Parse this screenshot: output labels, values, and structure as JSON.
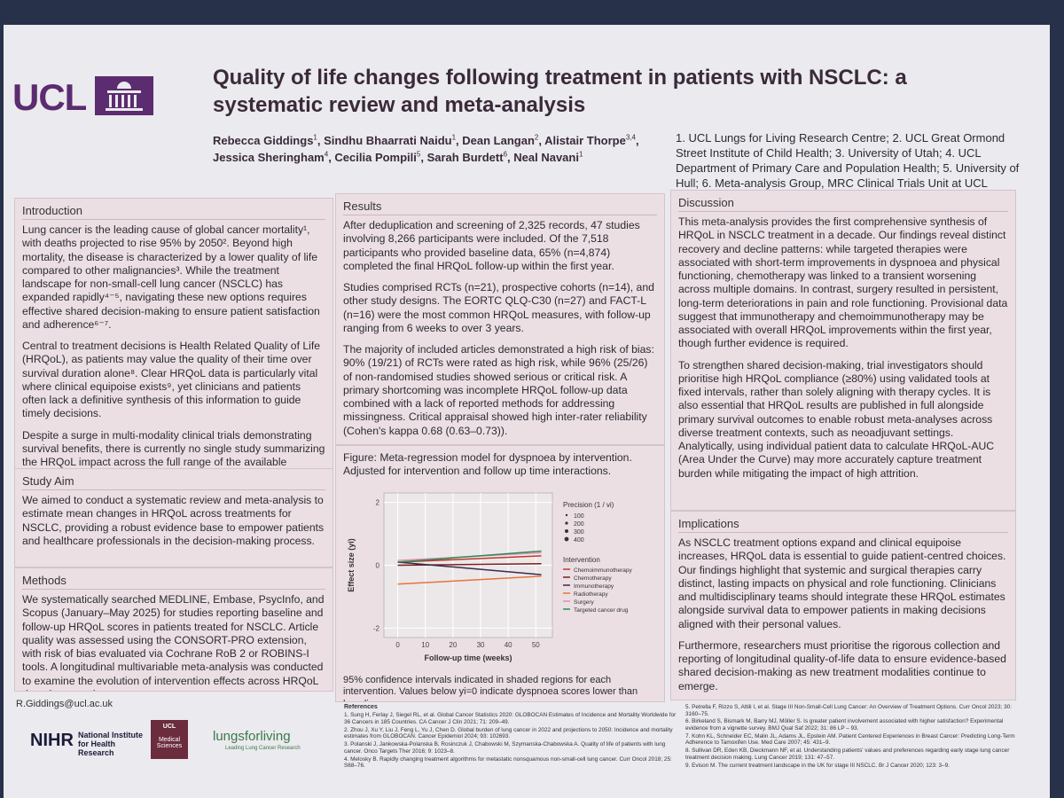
{
  "header": {
    "logo": "UCL",
    "title": "Quality of life changes following treatment in patients with NSCLC: a systematic review and meta-analysis",
    "authors": [
      {
        "name": "Rebecca Giddings",
        "sup": "1"
      },
      {
        "name": "Sindhu Bhaarrati Naidu",
        "sup": "1"
      },
      {
        "name": "Dean Langan",
        "sup": "2"
      },
      {
        "name": "Alistair Thorpe",
        "sup": "3,4"
      },
      {
        "name": "Jessica Sheringham",
        "sup": "4"
      },
      {
        "name": "Cecilia Pompili",
        "sup": "5"
      },
      {
        "name": "Sarah Burdett",
        "sup": "6"
      },
      {
        "name": "Neal Navani",
        "sup": "1"
      }
    ],
    "affiliations": "1. UCL Lungs for Living Research Centre; 2. UCL Great Ormond Street Institute of Child Health; 3. University of Utah; 4. UCL Department of Primary Care and Population Health; 5. University of Hull; 6. Meta-analysis Group, MRC Clinical Trials Unit at UCL"
  },
  "sections": [
    {
      "heading": "Introduction",
      "paragraphs": [
        "Lung cancer is the leading cause of global cancer mortality¹, with deaths projected to rise 95% by 2050². Beyond high mortality, the disease is characterized by a lower quality of life compared to other malignancies³. While the treatment landscape for non-small-cell lung cancer (NSCLC) has expanded rapidly⁴⁻⁵, navigating these new options requires effective shared decision-making to ensure patient satisfaction and adherence⁶⁻⁷.",
        "Central to treatment decisions is Health Related Quality of Life (HRQoL), as patients may value the quality of their time over survival duration alone⁸. Clear HRQoL data is particularly vital where clinical equipoise exists⁹, yet clinicians and patients often lack a definitive synthesis of this information to guide timely decisions.",
        "Despite a surge in multi-modality clinical trials demonstrating survival benefits, there is currently no single study summarizing the HRQoL impact across the full range of the available therapies."
      ]
    },
    {
      "heading": "Study Aim",
      "paragraphs": [
        "We aimed to conduct a systematic review and meta-analysis to estimate mean changes in HRQoL across treatments for NSCLC, providing a robust evidence base to empower patients and healthcare professionals in the decision-making process."
      ]
    },
    {
      "heading": "Methods",
      "paragraphs": [
        "We systematically searched MEDLINE, Embase, PsycInfo, and Scopus (January–May 2025) for studies reporting baseline and follow-up HRQoL scores in patients treated for NSCLC. Article quality was assessed using the CONSORT-PRO extension, with risk of bias evaluated via Cochrane RoB 2 or ROBINS-I tools. A longitudinal multivariable meta-analysis was conducted to examine the evolution of intervention effects across HRQoL domains over time."
      ]
    },
    {
      "heading": "Results",
      "paragraphs": [
        "After deduplication and screening of 2,325 records, 47 studies involving 8,266 participants were included. Of the 7,518 participants who provided baseline data, 65% (n=4,874) completed the final HRQoL follow-up within the first year.",
        "Studies comprised RCTs (n=21), prospective cohorts (n=14), and other study designs. The EORTC QLQ-C30 (n=27) and FACT-L (n=16) were the most common HRQoL measures, with follow-up ranging from 6 weeks to over 3 years.",
        "The majority of included articles demonstrated a high risk of bias: 90% (19/21) of RCTs were rated as high risk, while 96% (25/26) of non-randomised studies showed serious or critical risk. A primary shortcoming was incomplete HRQoL follow-up data combined with a lack of reported methods for addressing missingness. Critical appraisal showed high inter-rater reliability (Cohen's kappa 0.68 (0.63–0.73))."
      ]
    },
    {
      "heading": "Discussion",
      "paragraphs": [
        "This meta-analysis provides the first comprehensive synthesis of HRQoL in NSCLC treatment in a decade. Our findings reveal distinct recovery and decline patterns: while targeted therapies were associated with short-term improvements in dyspnoea and physical functioning, chemotherapy was linked to a transient worsening across multiple domains. In contrast, surgery resulted in persistent, long-term deteriorations in pain and role functioning. Provisional data suggest that immunotherapy and chemoimmunotherapy may be associated with overall HRQoL improvements within the first year, though further evidence is required.",
        "To strengthen shared decision-making, trial investigators should prioritise high HRQoL compliance (≥80%) using validated tools at fixed intervals, rather than solely aligning with therapy cycles. It is also essential that HRQoL results are published in full alongside primary survival outcomes to enable robust meta-analyses across diverse treatment contexts, such as neoadjuvant settings. Analytically, using individual patient data to calculate HRQoL-AUC (Area Under the Curve) may more accurately capture treatment burden while mitigating the impact of high attrition."
      ]
    },
    {
      "heading": "Implications",
      "paragraphs": [
        "As NSCLC treatment options expand and clinical equipoise increases, HRQoL data is essential to guide patient-centred choices. Our findings highlight that systemic and surgical therapies carry distinct, lasting impacts on physical and role functioning. Clinicians and multidisciplinary teams should integrate these HRQoL estimates alongside survival data to empower patients in making decisions aligned with their personal values.",
        "Furthermore, researchers must prioritise the rigorous collection and reporting of longitudinal quality-of-life data to ensure evidence-based shared decision-making as new treatment modalities continue to emerge."
      ]
    }
  ],
  "figure": {
    "caption": "Figure: Meta-regression model for dyspnoea by intervention. Adjusted for intervention and follow up time interactions.",
    "note": "95% confidence intervals indicated in shaded regions for each intervention. Values below yi=0 indicate dyspnoea scores lower than baseline",
    "chart": {
      "type": "line",
      "x_label": "Follow-up time (weeks)",
      "y_label": "Effect size (yi)",
      "xlim": [
        -5,
        56
      ],
      "ylim": [
        -2.3,
        2.3
      ],
      "xticks": [
        0,
        10,
        20,
        30,
        40,
        50
      ],
      "yticks": [
        -2,
        0,
        2
      ],
      "precision_title": "Precision (1 / vi)",
      "precision_levels": [
        100,
        200,
        300,
        400
      ],
      "legend_title": "Intervention",
      "x": [
        0,
        52
      ],
      "series": [
        {
          "name": "Chemoimmunotherapy",
          "color": "#c0392b",
          "values": [
            0.1,
            0.3
          ]
        },
        {
          "name": "Chemotherapy",
          "color": "#7a1f1f",
          "values": [
            0.0,
            0.05
          ]
        },
        {
          "name": "Immunotherapy",
          "color": "#3b2a4a",
          "values": [
            0.1,
            -0.3
          ]
        },
        {
          "name": "Radiotherapy",
          "color": "#e8743b",
          "values": [
            -0.6,
            -0.35
          ]
        },
        {
          "name": "Surgery",
          "color": "#e08fb0",
          "values": [
            0.15,
            0.4
          ]
        },
        {
          "name": "Targeted cancer drug",
          "color": "#2e8b57",
          "values": [
            0.1,
            0.45
          ]
        }
      ]
    }
  },
  "references": {
    "heading": "References",
    "items": [
      "1. Sung H, Ferlay J, Siegel RL, et al. Global Cancer Statistics 2020: GLOBOCAN Estimates of Incidence and Mortality Worldwide for 36 Cancers in 185 Countries. CA Cancer J Clin 2021; 71: 209–49.",
      "2. Zhou J, Xu Y, Liu J, Feng L, Yu J, Chen D. Global burden of lung cancer in 2022 and projections to 2050: Incidence and mortality estimates from GLOBOCAN. Cancer Epidemiol 2024; 93: 102693.",
      "3. Polanski J, Jankowska-Polanska B, Rosinczuk J, Chabowski M, Szymanska-Chabowska A. Quality of life of patients with lung cancer. Onco Targets Ther 2016; 9: 1023–8.",
      "4. Melosky B. Rapidly changing treatment algorithms for metastatic nonsquamous non-small-cell lung cancer. Curr Oncol 2018; 25: S68–76.",
      "5. Petrella F, Rizzo S, Attili I, et al. Stage III Non-Small-Cell Lung Cancer: An Overview of Treatment Options. Curr Oncol 2023; 30: 3160–75.",
      "6. Birkeland S, Bismark M, Barry MJ, Möller S. Is greater patient involvement associated with higher satisfaction? Experimental evidence from a vignette survey. BMJ Qual Saf 2022; 31: 86 LP – 93.",
      "7. Kohn KL, Schneider EC, Malin JL, Adams JL, Epstein AM. Patient Centered Experiences in Breast Cancer: Predicting Long-Term Adherence to Tamoxifen Use. Med Care 2007; 45: 431–9.",
      "8. Sullivan DR, Eden KB, Dieckmann NF, et al. Understanding patients' values and preferences regarding early stage lung cancer treatment decision making. Lung Cancer 2019; 131: 47–57.",
      "9. Evison M. The current treatment landscape in the UK for stage III NSCLC. Br J Cancer 2020; 123: 3–9."
    ]
  },
  "footer": {
    "email": "R.Giddings@ucl.ac.uk",
    "nihr": "NIHR",
    "nihr_name": "National Institute for Health Research",
    "ucl_small": "UCL",
    "medical_sciences": "Medical Sciences",
    "lungs": "lungsforliving",
    "lungs_tag": "Leading Lung Cancer Research"
  }
}
